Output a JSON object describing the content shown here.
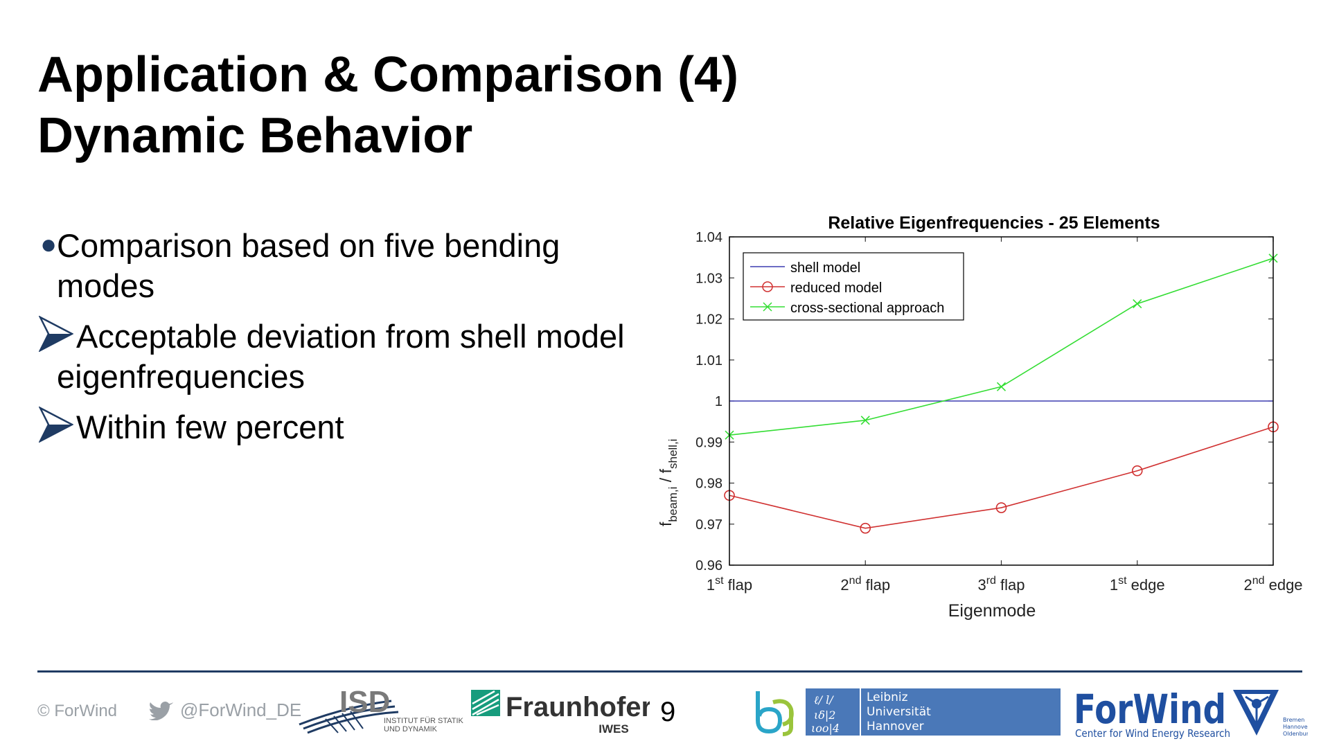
{
  "slide": {
    "title_line1": "Application & Comparison (4)",
    "title_line2": "Dynamic Behavior",
    "bullet_main_l1": "Comparison based on five bending",
    "bullet_main_l2": "modes",
    "sub1_l1": "Acceptable deviation from shell model",
    "sub1_l2": "eigenfrequencies",
    "sub2": "Within few percent",
    "page_number": "9"
  },
  "footer": {
    "copyright": "© ForWind",
    "twitter": "@ForWind_DE",
    "isd_name": "ISD",
    "isd_sub1": "INSTITUT FÜR STATIK",
    "isd_sub2": "UND DYNAMIK",
    "fraunhofer": "Fraunhofer",
    "fraunhofer_sub": "IWES",
    "luh_line1": "Leibniz",
    "luh_line2": "Universität",
    "luh_line3": "Hannover",
    "forwind": "ForWind",
    "forwind_sub": "Center for Wind Energy Research",
    "forwind_cities": [
      "Bremen",
      "Hannover",
      "Oldenburg"
    ]
  },
  "colors": {
    "accent": "#1f3b63",
    "shell": "#3b3bb0",
    "reduced": "#d03030",
    "cross": "#33dd33"
  },
  "chart_data": {
    "type": "line",
    "title": "Relative Eigenfrequencies - 25 Elements",
    "xlabel": "Eigenmode",
    "ylabel_main": "f",
    "ylabel_sub1": "beam,i",
    "ylabel_mid": " / f",
    "ylabel_sub2": "shell,i",
    "categories": [
      {
        "base": "1",
        "sup": "st",
        "word": "flap"
      },
      {
        "base": "2",
        "sup": "nd",
        "word": "flap"
      },
      {
        "base": "3",
        "sup": "rd",
        "word": "flap"
      },
      {
        "base": "1",
        "sup": "st",
        "word": "edge"
      },
      {
        "base": "2",
        "sup": "nd",
        "word": "edge"
      }
    ],
    "ylim": [
      0.96,
      1.04
    ],
    "yticks": [
      "0.96",
      "0.97",
      "0.98",
      "0.99",
      "1",
      "1.01",
      "1.02",
      "1.03",
      "1.04"
    ],
    "legend_position": "top-left",
    "series": [
      {
        "name": "shell model",
        "values": [
          1.0,
          1.0,
          1.0,
          1.0,
          1.0
        ],
        "marker": "none"
      },
      {
        "name": "reduced model",
        "values": [
          0.977,
          0.969,
          0.974,
          0.983,
          0.9937
        ],
        "marker": "circle"
      },
      {
        "name": "cross-sectional approach",
        "values": [
          0.9917,
          0.9953,
          1.0035,
          1.0237,
          1.0348
        ],
        "marker": "x"
      }
    ]
  }
}
